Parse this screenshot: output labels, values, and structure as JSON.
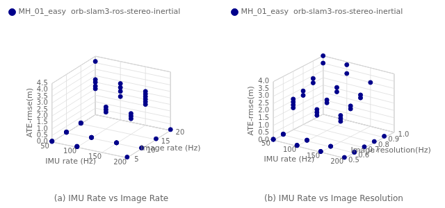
{
  "chart_data": [
    {
      "type": "scatter3d",
      "title": "(a) IMU Rate vs Image Rate",
      "x_label": "IMU rate (Hz)",
      "y_label": "Image rate (Hz)",
      "z_label": "ATE-rmse(m)",
      "series": [
        {
          "name": "MH_01_easy  orb-slam3-ros-stereo-inertial",
          "color": "#00008B",
          "x": [
            50,
            50,
            50,
            50,
            50,
            50,
            50,
            50,
            50,
            50,
            50,
            50,
            50,
            50,
            50,
            50,
            50,
            100,
            100,
            100,
            100,
            100,
            100,
            100,
            100,
            100,
            100,
            100,
            100,
            100,
            100,
            150,
            150,
            150,
            150,
            150,
            150,
            150,
            150,
            150,
            150,
            150,
            150,
            200,
            200,
            200,
            200,
            200
          ],
          "y": [
            5,
            5,
            5,
            5,
            10,
            10,
            10,
            10,
            15,
            15,
            15,
            15,
            20,
            20,
            20,
            20,
            20,
            5,
            5,
            5,
            5,
            10,
            10,
            10,
            15,
            15,
            15,
            20,
            20,
            20,
            20,
            10,
            10,
            10,
            15,
            15,
            15,
            20,
            20,
            20,
            20,
            20,
            20,
            5,
            10,
            10,
            15,
            20
          ],
          "z": [
            0.04,
            0.05,
            0.06,
            0.07,
            0.04,
            0.05,
            0.06,
            0.07,
            0.04,
            0.05,
            0.06,
            0.07,
            2.0,
            2.2,
            2.5,
            2.7,
            4.1,
            0.04,
            0.05,
            0.06,
            0.07,
            0.04,
            0.05,
            0.06,
            1.3,
            1.5,
            1.7,
            1.8,
            2.2,
            2.5,
            2.8,
            0.04,
            0.05,
            0.06,
            1.2,
            1.4,
            1.6,
            1.6,
            1.8,
            2.0,
            2.2,
            2.4,
            2.6,
            0.05,
            0.05,
            0.06,
            0.06,
            0.07
          ]
        }
      ],
      "xlim": [
        50,
        200
      ],
      "ylim": [
        5,
        20
      ],
      "zlim": [
        0,
        4.5
      ],
      "xticks": [
        50,
        100,
        150,
        200
      ],
      "yticks": [
        5,
        10,
        15,
        20
      ],
      "zticks": [
        {
          "value": 0,
          "label": "0.0"
        },
        0.5,
        {
          "value": 1,
          "label": "1.0"
        },
        1.5,
        {
          "value": 2,
          "label": "2.0"
        },
        2.5,
        {
          "value": 3,
          "label": "3.0"
        },
        3.5,
        {
          "value": 4,
          "label": "4.0"
        },
        4.5
      ],
      "grid": true,
      "legend": "upper left"
    },
    {
      "type": "scatter3d",
      "title": "(b) IMU Rate vs Image Resolution",
      "x_label": "IMU rate (Hz)",
      "y_label": "Image resolution(Hz)",
      "z_label": "ATE-rmse(m)",
      "series": [
        {
          "name": "MH_01_easy  orb-slam3-ros-stereo-inertial",
          "color": "#00008B",
          "x": [
            50,
            50,
            50,
            50,
            50,
            50,
            50,
            50,
            50,
            50,
            50,
            50,
            50,
            50,
            50,
            50,
            100,
            100,
            100,
            100,
            100,
            100,
            100,
            100,
            100,
            100,
            100,
            100,
            100,
            100,
            150,
            150,
            150,
            150,
            150,
            150,
            150,
            150,
            150,
            150,
            150,
            150,
            200,
            200,
            200,
            200,
            200,
            200
          ],
          "y": [
            0.5,
            0.5,
            0.5,
            0.6,
            0.6,
            0.6,
            0.7,
            0.7,
            0.7,
            0.7,
            0.8,
            0.8,
            0.9,
            0.9,
            1.0,
            1.0,
            0.5,
            0.5,
            0.5,
            0.6,
            0.6,
            0.7,
            0.7,
            0.7,
            0.8,
            0.8,
            0.9,
            0.9,
            1.0,
            1.0,
            0.5,
            0.5,
            0.6,
            0.6,
            0.7,
            0.7,
            0.7,
            0.8,
            0.8,
            0.9,
            0.9,
            1.0,
            0.5,
            0.6,
            0.6,
            0.7,
            0.8,
            0.9
          ],
          "z": [
            0.04,
            0.05,
            0.06,
            0.04,
            0.05,
            0.06,
            1.5,
            1.7,
            1.9,
            2.1,
            2.0,
            2.3,
            2.5,
            2.8,
            3.5,
            4.0,
            0.04,
            0.05,
            0.06,
            0.04,
            0.06,
            1.4,
            1.6,
            1.8,
            1.9,
            2.1,
            2.3,
            2.6,
            3.2,
            3.8,
            0.04,
            0.05,
            0.04,
            0.05,
            1.4,
            1.6,
            1.8,
            1.9,
            2.1,
            2.3,
            2.5,
            3.0,
            0.05,
            0.05,
            0.06,
            0.07,
            0.08,
            0.09
          ]
        }
      ],
      "xlim": [
        50,
        200
      ],
      "ylim": [
        0.5,
        1.0
      ],
      "zlim": [
        0,
        4.0
      ],
      "xticks": [
        50,
        100,
        150,
        200
      ],
      "yticks": [
        0.5,
        0.6,
        0.7,
        0.8,
        0.9,
        {
          "value": 1,
          "label": "1.0"
        }
      ],
      "zticks": [
        {
          "value": 0,
          "label": "0.0"
        },
        0.5,
        {
          "value": 1,
          "label": "1.0"
        },
        1.5,
        {
          "value": 2,
          "label": "2.0"
        },
        2.5,
        {
          "value": 3,
          "label": "3.0"
        },
        3.5,
        {
          "value": 4,
          "label": "4.0"
        }
      ],
      "grid": true,
      "legend": "upper left"
    }
  ]
}
